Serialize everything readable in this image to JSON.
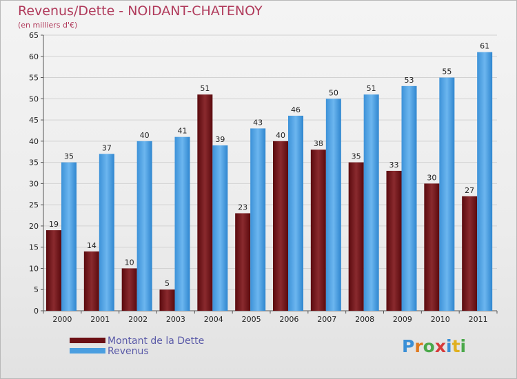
{
  "title": "Revenus/Dette - NOIDANT-CHATENOY",
  "subtitle": "(en milliers d'€)",
  "colors": {
    "dette": "#7a1f24",
    "revenus": "#4ea3e4",
    "title": "#b03a5b",
    "legend_text": "#5a5aa8"
  },
  "legend": {
    "items": [
      {
        "label": "Montant de la Dette",
        "color": "#6b0f14"
      },
      {
        "label": "Revenus",
        "color": "#4a9ee0"
      }
    ]
  },
  "logo": {
    "text": "Proxiti",
    "letters": [
      {
        "ch": "P",
        "color": "#3a8fd6"
      },
      {
        "ch": "r",
        "color": "#e07a1f"
      },
      {
        "ch": "o",
        "color": "#4aa84a"
      },
      {
        "ch": "x",
        "color": "#d63a3a"
      },
      {
        "ch": "i",
        "color": "#3a8fd6"
      },
      {
        "ch": "t",
        "color": "#e0b01f"
      },
      {
        "ch": "i",
        "color": "#4aa84a"
      }
    ]
  },
  "chart_data": {
    "type": "bar",
    "categories": [
      "2000",
      "2001",
      "2002",
      "2003",
      "2004",
      "2005",
      "2006",
      "2007",
      "2008",
      "2009",
      "2010",
      "2011"
    ],
    "series": [
      {
        "name": "Montant de la Dette",
        "values": [
          19,
          14,
          10,
          5,
          51,
          23,
          40,
          38,
          35,
          33,
          30,
          27
        ]
      },
      {
        "name": "Revenus",
        "values": [
          35,
          37,
          40,
          41,
          39,
          43,
          46,
          50,
          51,
          53,
          55,
          61
        ]
      }
    ],
    "ylim": [
      0,
      65
    ],
    "yticks": [
      0,
      5,
      10,
      15,
      20,
      25,
      30,
      35,
      40,
      45,
      50,
      55,
      60,
      65
    ],
    "grid": true,
    "legend_position": "bottom-left"
  }
}
